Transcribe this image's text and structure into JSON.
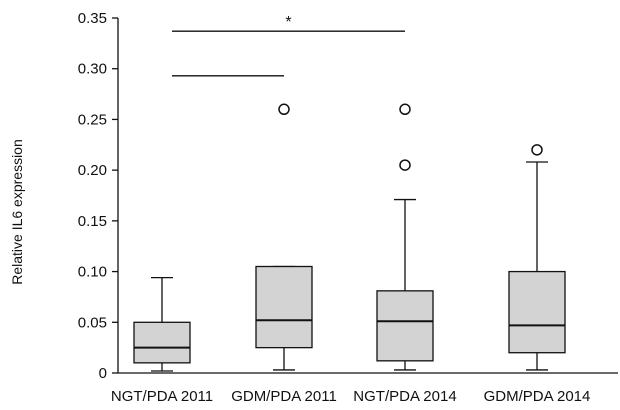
{
  "chart_data": {
    "type": "box",
    "title": "",
    "xlabel": "",
    "ylabel": "Relative IL6 expression",
    "ylim": [
      0,
      0.35
    ],
    "yticks": [
      "0",
      "0.05",
      "0.10",
      "0.15",
      "0.20",
      "0.25",
      "0.30",
      "0.35"
    ],
    "categories": [
      "NGT/PDA 2011",
      "GDM/PDA 2011",
      "NGT/PDA 2014",
      "GDM/PDA 2014"
    ],
    "box_fill": "#d3d3d3",
    "boxes": [
      {
        "whisker_low": 0.002,
        "q1": 0.01,
        "median": 0.025,
        "q3": 0.05,
        "whisker_high": 0.094,
        "outliers": []
      },
      {
        "whisker_low": 0.003,
        "q1": 0.025,
        "median": 0.052,
        "q3": 0.105,
        "whisker_high": 0.105,
        "outliers": [
          0.26
        ]
      },
      {
        "whisker_low": 0.003,
        "q1": 0.012,
        "median": 0.051,
        "q3": 0.081,
        "whisker_high": 0.171,
        "outliers": [
          0.205,
          0.26
        ]
      },
      {
        "whisker_low": 0.003,
        "q1": 0.02,
        "median": 0.047,
        "q3": 0.1,
        "whisker_high": 0.208,
        "outliers": [
          0.22
        ]
      }
    ],
    "significance": [
      {
        "from": 0,
        "to": 2,
        "y": 0.337,
        "label": "*"
      },
      {
        "from": 0,
        "to": 1,
        "y": 0.293,
        "label": ""
      }
    ]
  }
}
